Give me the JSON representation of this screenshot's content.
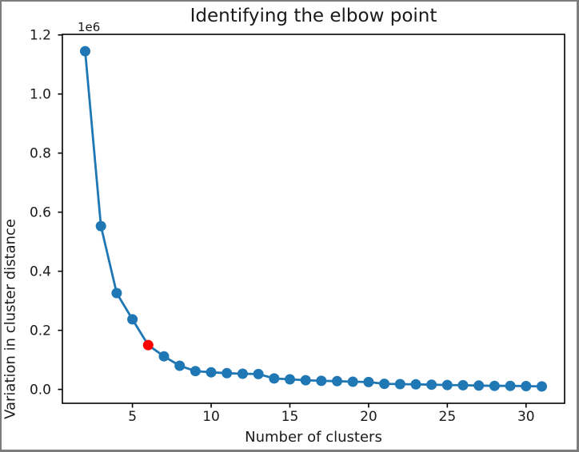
{
  "window": {
    "background": "#ffffff",
    "border_color": "#7d7d7d"
  },
  "chart_data": {
    "type": "line",
    "title": "Identifying the elbow point",
    "xlabel": "Number of clusters",
    "ylabel": "Variation in cluster distance",
    "y_offset_text": "1e6",
    "x": [
      2,
      3,
      4,
      5,
      6,
      7,
      8,
      9,
      10,
      11,
      12,
      13,
      14,
      15,
      16,
      17,
      18,
      19,
      20,
      21,
      22,
      23,
      24,
      25,
      26,
      27,
      28,
      29,
      30,
      31
    ],
    "values": [
      1145000,
      553000,
      326000,
      237000,
      150000,
      112000,
      80000,
      62000,
      58000,
      55000,
      53000,
      52000,
      37000,
      34000,
      31000,
      29000,
      28000,
      26000,
      25000,
      19000,
      18000,
      17000,
      16000,
      15000,
      14000,
      13000,
      12000,
      12000,
      11000,
      10000
    ],
    "elbow_point": {
      "x": 6,
      "value": 150000
    },
    "xticks": [
      5,
      10,
      15,
      20,
      25,
      30
    ],
    "xtick_labels": [
      "5",
      "10",
      "15",
      "20",
      "25",
      "30"
    ],
    "yticks": [
      0,
      200000,
      400000,
      600000,
      800000,
      1000000,
      1200000
    ],
    "ytick_labels": [
      "0.0",
      "0.2",
      "0.4",
      "0.6",
      "0.8",
      "1.0",
      "1.2"
    ],
    "xlim": [
      0.55,
      32.45
    ],
    "ylim": [
      -47000,
      1202000
    ],
    "grid": false,
    "legend_position": "none",
    "line_color": "#1f77b4",
    "marker_color": "#1f77b4",
    "elbow_color": "#ff0000",
    "axis_color": "#000000",
    "text_color": "#1a1a1a"
  }
}
